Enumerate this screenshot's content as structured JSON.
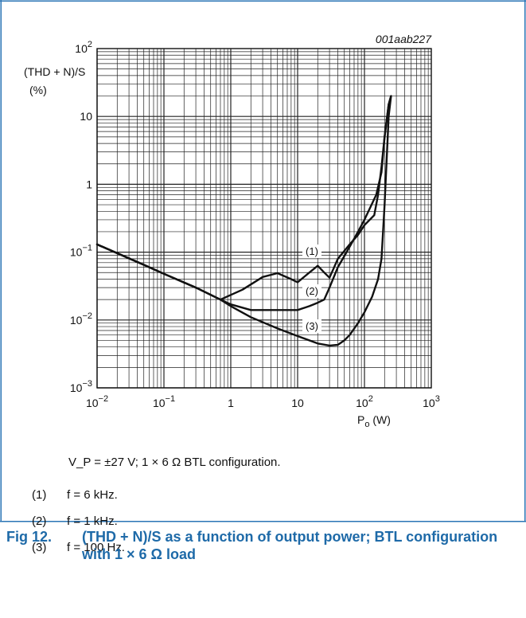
{
  "chart_data": {
    "type": "line",
    "figure_code": "001aab227",
    "y_axis": {
      "label_line1": "(THD + N)/S",
      "label_line2": "(%)",
      "scale": "log",
      "range": [
        0.001,
        100
      ],
      "tick_labels": [
        "10^-3",
        "10^-2",
        "10^-1",
        "1",
        "10",
        "10^2"
      ]
    },
    "x_axis": {
      "label": "P_o (W)",
      "scale": "log",
      "range": [
        0.01,
        1000
      ],
      "tick_labels": [
        "10^-2",
        "10^-1",
        "1",
        "10",
        "10^2",
        "10^3"
      ]
    },
    "grid": true,
    "series": [
      {
        "name": "(1)",
        "x": [
          0.01,
          0.05,
          0.1,
          0.3,
          0.7,
          1.5,
          3,
          5,
          8,
          10,
          15,
          20,
          25,
          30,
          40,
          60,
          80,
          100,
          140,
          160,
          180,
          200,
          230,
          250
        ],
        "y": [
          0.13,
          0.065,
          0.048,
          0.03,
          0.02,
          0.028,
          0.043,
          0.049,
          0.04,
          0.036,
          0.05,
          0.063,
          0.05,
          0.042,
          0.08,
          0.13,
          0.18,
          0.25,
          0.35,
          0.7,
          1.8,
          5,
          15,
          20
        ]
      },
      {
        "name": "(2)",
        "x": [
          0.01,
          0.05,
          0.1,
          0.3,
          0.7,
          1,
          2,
          5,
          10,
          15,
          20,
          25,
          30,
          40,
          60,
          80,
          100,
          150,
          180,
          200,
          230,
          250
        ],
        "y": [
          0.13,
          0.065,
          0.048,
          0.03,
          0.02,
          0.017,
          0.014,
          0.014,
          0.014,
          0.016,
          0.018,
          0.02,
          0.03,
          0.06,
          0.12,
          0.2,
          0.3,
          0.7,
          1.5,
          5,
          15,
          20
        ]
      },
      {
        "name": "(3)",
        "x": [
          0.01,
          0.05,
          0.1,
          0.3,
          0.7,
          1,
          2,
          5,
          10,
          20,
          30,
          40,
          50,
          60,
          80,
          100,
          130,
          160,
          180,
          200,
          230,
          250
        ],
        "y": [
          0.13,
          0.065,
          0.048,
          0.03,
          0.02,
          0.016,
          0.011,
          0.0075,
          0.0058,
          0.0045,
          0.0042,
          0.0043,
          0.005,
          0.006,
          0.009,
          0.013,
          0.022,
          0.04,
          0.08,
          0.5,
          10,
          20
        ]
      }
    ]
  },
  "notes": {
    "condition": "V_P = ±27 V; 1 × 6 Ω BTL configuration.",
    "legend": [
      {
        "num": "(1)",
        "text": "f = 6 kHz."
      },
      {
        "num": "(2)",
        "text": "f = 1 kHz."
      },
      {
        "num": "(3)",
        "text": "f = 100 Hz."
      }
    ]
  },
  "caption": {
    "number": "Fig 12.",
    "text": "(THD + N)/S as a function of output power; BTL configuration with 1 × 6 Ω load"
  },
  "colors": {
    "frame": "#2a74b5",
    "caption": "#1e6aa8",
    "curve": "#111111"
  }
}
